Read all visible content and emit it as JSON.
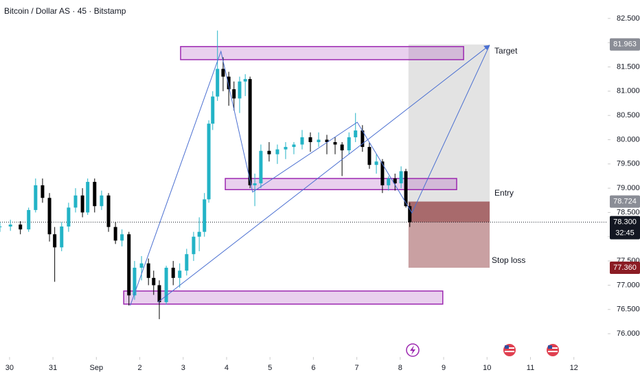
{
  "chart_data": {
    "type": "candlestick",
    "title": "Bitcoin / Dollar AS · 45 · Bitstamp",
    "xlim": [
      -0.22,
      13.78
    ],
    "ylim": [
      75.52,
      82.88
    ],
    "xticks": [
      {
        "value": 0,
        "label": "30"
      },
      {
        "value": 1,
        "label": "31"
      },
      {
        "value": 2,
        "label": "Sep"
      },
      {
        "value": 3,
        "label": "2"
      },
      {
        "value": 4,
        "label": "3"
      },
      {
        "value": 5,
        "label": "4"
      },
      {
        "value": 6,
        "label": "5"
      },
      {
        "value": 7,
        "label": "6"
      },
      {
        "value": 8,
        "label": "7"
      },
      {
        "value": 9,
        "label": "8"
      },
      {
        "value": 10,
        "label": "9"
      },
      {
        "value": 11,
        "label": "10"
      },
      {
        "value": 12,
        "label": "11"
      },
      {
        "value": 13,
        "label": "12"
      }
    ],
    "yticks": [
      {
        "value": 76,
        "label": "76.000"
      },
      {
        "value": 76.5,
        "label": "76.500"
      },
      {
        "value": 77,
        "label": "77.000"
      },
      {
        "value": 77.5,
        "label": "77.500"
      },
      {
        "value": 78,
        "label": "78.000"
      },
      {
        "value": 78.5,
        "label": "78.500"
      },
      {
        "value": 79,
        "label": "79.000"
      },
      {
        "value": 79.5,
        "label": "79.500"
      },
      {
        "value": 80,
        "label": "80.000"
      },
      {
        "value": 80.5,
        "label": "80.500"
      },
      {
        "value": 81,
        "label": "81.000"
      },
      {
        "value": 81.5,
        "label": "81.500"
      },
      {
        "value": 82,
        "label": "82.000"
      },
      {
        "value": 82.5,
        "label": "82.500"
      }
    ],
    "up_color": "#22b3c6",
    "down_color": "#000000",
    "x": [
      -0.22,
      0.02,
      0.25,
      0.44,
      0.6,
      0.76,
      0.92,
      1.04,
      1.2,
      1.36,
      1.52,
      1.68,
      1.8,
      1.96,
      2.12,
      2.28,
      2.44,
      2.59,
      2.75,
      2.88,
      3.04,
      3.2,
      3.32,
      3.45,
      3.61,
      3.77,
      3.92,
      4.08,
      4.24,
      4.37,
      4.49,
      4.59,
      4.68,
      4.79,
      4.92,
      5.05,
      5.17,
      5.3,
      5.43,
      5.54,
      5.65,
      5.79,
      5.98,
      6.17,
      6.36,
      6.55,
      6.74,
      6.93,
      7.12,
      7.31,
      7.5,
      7.66,
      7.82,
      7.97,
      8.13,
      8.29,
      8.45,
      8.59,
      8.73,
      8.88,
      9.02,
      9.13,
      9.22
    ],
    "open": [
      78.2,
      78.21,
      78.25,
      78.15,
      78.55,
      79.06,
      78.8,
      78.05,
      77.78,
      78.21,
      78.6,
      78.85,
      78.5,
      79.13,
      78.63,
      78.85,
      78.2,
      77.92,
      78.05,
      76.79,
      77.36,
      77.45,
      77.15,
      77,
      76.65,
      77.36,
      77.15,
      77.3,
      77.64,
      78,
      78.1,
      78.77,
      80.33,
      80.89,
      81.46,
      81.3,
      81.04,
      80.85,
      81.2,
      81.25,
      79.06,
      79.1,
      79.77,
      79.7,
      79.8,
      79.85,
      79.9,
      80.05,
      79.95,
      80,
      79.95,
      79.9,
      79.78,
      80.05,
      80.19,
      79.85,
      79.48,
      79.55,
      79.06,
      79.2,
      79.1,
      79.35,
      78.63
    ],
    "high": [
      78.3,
      78.35,
      78.32,
      78.6,
      79.2,
      79.2,
      78.9,
      78.2,
      78.3,
      78.7,
      79,
      79,
      79.2,
      79.2,
      78.95,
      78.9,
      78.3,
      78.15,
      78.1,
      77.5,
      77.6,
      77.55,
      77.3,
      77.1,
      77.4,
      77.5,
      77.45,
      77.75,
      78.1,
      78.4,
      78.9,
      80.4,
      81,
      82.25,
      81.7,
      81.4,
      81.2,
      81.3,
      81.35,
      81.3,
      79.3,
      79.9,
      79.95,
      79.9,
      79.95,
      79.95,
      80.2,
      80.15,
      80.15,
      80.1,
      80.05,
      79.95,
      80.15,
      80.55,
      80.3,
      79.95,
      79.7,
      79.6,
      79.25,
      79.3,
      79.45,
      79.4,
      78.7
    ],
    "low": [
      78.1,
      78.12,
      78.05,
      78.1,
      78.5,
      78.7,
      77.9,
      77.07,
      77.7,
      78.1,
      78.5,
      78.4,
      78.45,
      78.5,
      78.55,
      78.1,
      77.85,
      77.8,
      76.58,
      76.7,
      77.1,
      77,
      76.8,
      76.3,
      76.6,
      77,
      76.95,
      77.2,
      77.5,
      77.7,
      78,
      78.7,
      80.2,
      80.8,
      81,
      80.7,
      80.6,
      80.55,
      80.9,
      79,
      78.63,
      79,
      79.55,
      79.5,
      79.6,
      79.7,
      79.8,
      79.75,
      79.85,
      79.7,
      79.7,
      79.25,
      79.7,
      79.95,
      79.75,
      79.4,
      79.3,
      78.9,
      78.95,
      78.95,
      79,
      78.6,
      78.2
    ],
    "close": [
      78.21,
      78.25,
      78.15,
      78.55,
      79.06,
      78.8,
      78.05,
      77.78,
      78.21,
      78.6,
      78.85,
      78.5,
      79.13,
      78.63,
      78.85,
      78.2,
      77.92,
      78.05,
      76.79,
      77.36,
      77.45,
      77.15,
      77,
      76.65,
      77.36,
      77.15,
      77.3,
      77.64,
      78,
      78.1,
      78.77,
      80.33,
      80.89,
      81.46,
      81.3,
      81.04,
      80.85,
      81.2,
      81.25,
      79.06,
      79.1,
      79.77,
      79.7,
      79.8,
      79.85,
      79.9,
      80.05,
      79.95,
      80,
      79.95,
      79.9,
      79.78,
      80.05,
      80.19,
      79.85,
      79.48,
      79.55,
      79.06,
      79.2,
      79.1,
      79.35,
      78.63,
      78.3
    ],
    "zones": [
      {
        "x0": 3.94,
        "x1": 10.46,
        "y0": 81.65,
        "y1": 81.92
      },
      {
        "x0": 4.97,
        "x1": 10.3,
        "y0": 78.97,
        "y1": 79.2
      },
      {
        "x0": 2.63,
        "x1": 9.98,
        "y0": 76.61,
        "y1": 76.88
      }
    ],
    "zone_color": "#9c27b0",
    "trend_lines": [
      {
        "x": [
          2.78,
          4.87,
          5.6,
          8.01,
          9.27,
          11.06
        ],
        "y": [
          76.58,
          81.82,
          78.92,
          80.36,
          78.49,
          81.95
        ]
      },
      {
        "x": [
          3.42,
          11.06
        ],
        "y": [
          76.65,
          81.95
        ]
      }
    ],
    "line_color": "#4a6fd1",
    "position": {
      "x0": 9.19,
      "x1": 11.06,
      "target": 81.963,
      "entry": 78.724,
      "stop": {
        "value": 77.36,
        "label": "77.360"
      },
      "target_label": "Target",
      "entry_label": "Entry",
      "stop_label": "Stop loss"
    },
    "current_price": {
      "value": 78.3,
      "label": "78.300"
    },
    "countdown": "32:45"
  }
}
